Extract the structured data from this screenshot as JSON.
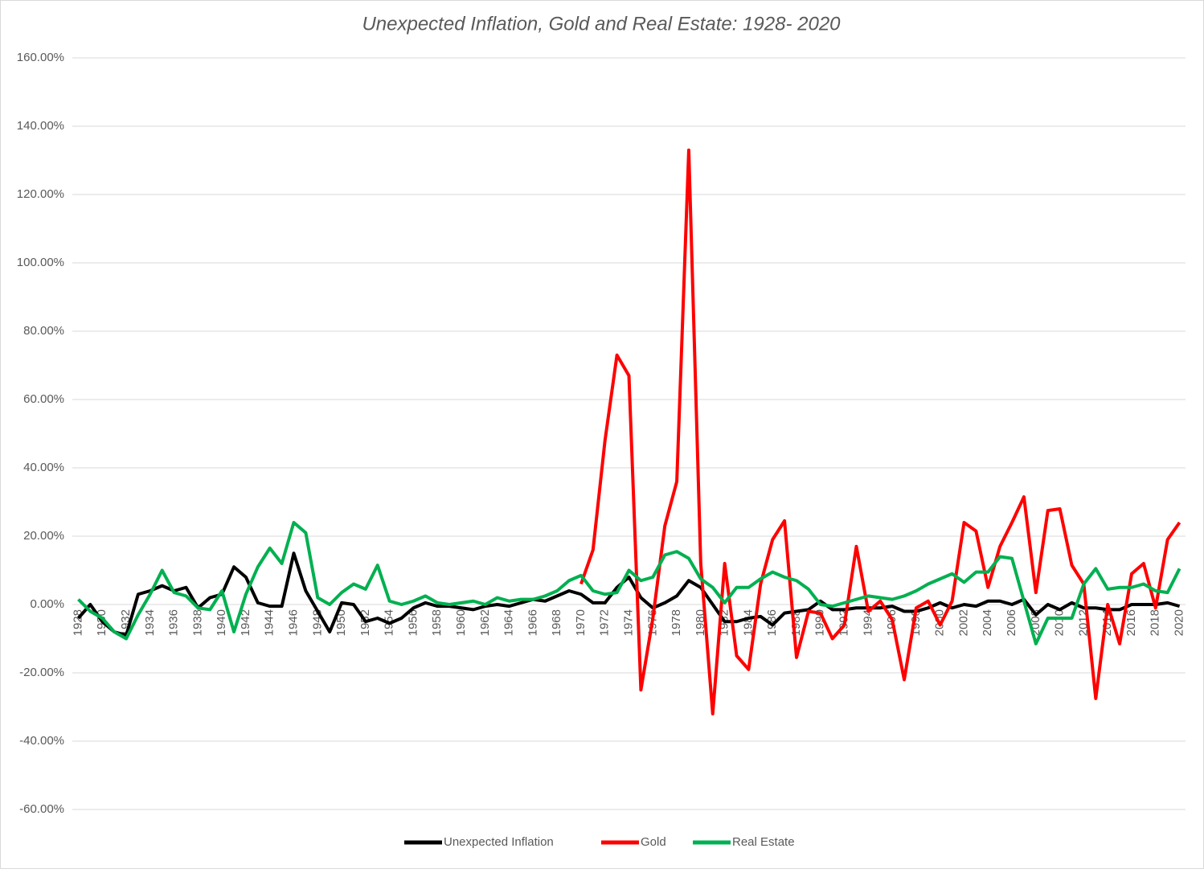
{
  "chart_data": {
    "type": "line",
    "title": "Unexpected Inflation, Gold and Real Estate: 1928- 2020",
    "categories": [
      "1928",
      null,
      "1930",
      null,
      "1932",
      null,
      "1934",
      null,
      "1936",
      null,
      "1938",
      null,
      "1940",
      null,
      "1942",
      null,
      "1944",
      null,
      "1946",
      null,
      "1948",
      null,
      "1950",
      null,
      "1952",
      null,
      "1954",
      null,
      "1956",
      null,
      "1958",
      null,
      "1960",
      null,
      "1962",
      null,
      "1964",
      null,
      "1966",
      null,
      "1968",
      null,
      "1970",
      null,
      "1972",
      null,
      "1974",
      null,
      "1976",
      null,
      "1978",
      null,
      "1980",
      null,
      "1982",
      null,
      "1984",
      null,
      "1986",
      null,
      "1988",
      null,
      "1990",
      null,
      "1992",
      null,
      "1994",
      null,
      "1996",
      null,
      "1998",
      null,
      "2000",
      null,
      "2002",
      null,
      "2004",
      null,
      "2006",
      null,
      "2008",
      null,
      "2010",
      null,
      "2012",
      null,
      "2014",
      null,
      "2016",
      null,
      "2018",
      null,
      "2020"
    ],
    "series": [
      {
        "name": "Unexpected Inflation",
        "color": "#000000",
        "values": [
          -4,
          0,
          -5,
          -8,
          -9,
          3,
          4,
          5.5,
          4,
          5,
          -1,
          2,
          3,
          11,
          8,
          0.5,
          -0.5,
          -0.5,
          15,
          4,
          -2,
          -8,
          0.5,
          0,
          -5,
          -4,
          -5.5,
          -4,
          -1,
          0.5,
          -0.5,
          -0.5,
          -1,
          -1.5,
          -0.5,
          0,
          -0.5,
          0.5,
          1.5,
          1,
          2.5,
          4,
          3,
          0.5,
          0.5,
          5,
          8,
          2,
          -1,
          0.5,
          2.5,
          7,
          5,
          0,
          -5,
          -5,
          -4,
          -3.5,
          -6,
          -2.5,
          -2,
          -1.5,
          1,
          -1.5,
          -1.5,
          -1,
          -1,
          -1,
          -0.5,
          -2,
          -2,
          -1,
          0.5,
          -1,
          0,
          -0.5,
          1,
          1,
          0,
          1.5,
          -3,
          0,
          -1.5,
          0.5,
          -1,
          -1,
          -1.5,
          -1.5,
          0,
          0,
          0,
          0.5,
          -0.5
        ]
      },
      {
        "name": "Gold",
        "color": "#ff0000",
        "values": [
          null,
          null,
          null,
          null,
          null,
          null,
          null,
          null,
          null,
          null,
          null,
          null,
          null,
          null,
          null,
          null,
          null,
          null,
          null,
          null,
          null,
          null,
          null,
          null,
          null,
          null,
          null,
          null,
          null,
          null,
          null,
          null,
          null,
          null,
          null,
          null,
          null,
          null,
          null,
          null,
          null,
          null,
          6,
          16,
          48,
          73,
          67,
          -25,
          -4,
          23,
          36,
          133,
          12,
          -32,
          12,
          -15,
          -19,
          6,
          19,
          24.5,
          -15.5,
          -2,
          -2.5,
          -10,
          -6,
          17,
          -2,
          1,
          -4.5,
          -22,
          -1,
          1,
          -6,
          1,
          24,
          21.5,
          5,
          17,
          24,
          31.5,
          3.5,
          27.5,
          28,
          11.5,
          6,
          -27.5,
          0,
          -11.5,
          9,
          12,
          -1,
          19,
          24
        ]
      },
      {
        "name": "Real Estate",
        "color": "#00b050",
        "values": [
          1.5,
          -2,
          -4,
          -8,
          -10,
          -3,
          3,
          10,
          3.5,
          2.5,
          -1,
          -1.5,
          4,
          -8,
          3,
          11,
          16.5,
          12,
          24,
          21,
          2,
          0,
          3.5,
          6,
          4.5,
          11.5,
          1,
          0,
          1,
          2.5,
          0.5,
          0,
          0.5,
          1,
          0,
          2,
          1,
          1.5,
          1.5,
          2.5,
          4,
          7,
          8.5,
          4,
          3,
          3.5,
          10,
          7,
          8,
          14.5,
          15.5,
          13.5,
          7.5,
          5,
          0.5,
          5,
          5,
          7.5,
          9.5,
          8,
          7,
          4.5,
          0,
          -0.5,
          0.5,
          1.5,
          2.5,
          2,
          1.5,
          2.5,
          4,
          6,
          7.5,
          9,
          6.5,
          9.5,
          9.5,
          14,
          13.5,
          1,
          -11.5,
          -4,
          -4,
          -4,
          6,
          10.5,
          4.5,
          5,
          5,
          6,
          4,
          3.5,
          10.5
        ]
      }
    ],
    "ylim": [
      -60,
      160
    ],
    "yticks": [
      {
        "value": -60,
        "label": "-60.00%"
      },
      {
        "value": -40,
        "label": "-40.00%"
      },
      {
        "value": -20,
        "label": "-20.00%"
      },
      {
        "value": 0,
        "label": "0.00%"
      },
      {
        "value": 20,
        "label": "20.00%"
      },
      {
        "value": 40,
        "label": "40.00%"
      },
      {
        "value": 60,
        "label": "60.00%"
      },
      {
        "value": 80,
        "label": "80.00%"
      },
      {
        "value": 100,
        "label": "100.00%"
      },
      {
        "value": 120,
        "label": "120.00%"
      },
      {
        "value": 140,
        "label": "140.00%"
      },
      {
        "value": 160,
        "label": "160.00%"
      }
    ],
    "grid": true,
    "legend": "bottom"
  }
}
